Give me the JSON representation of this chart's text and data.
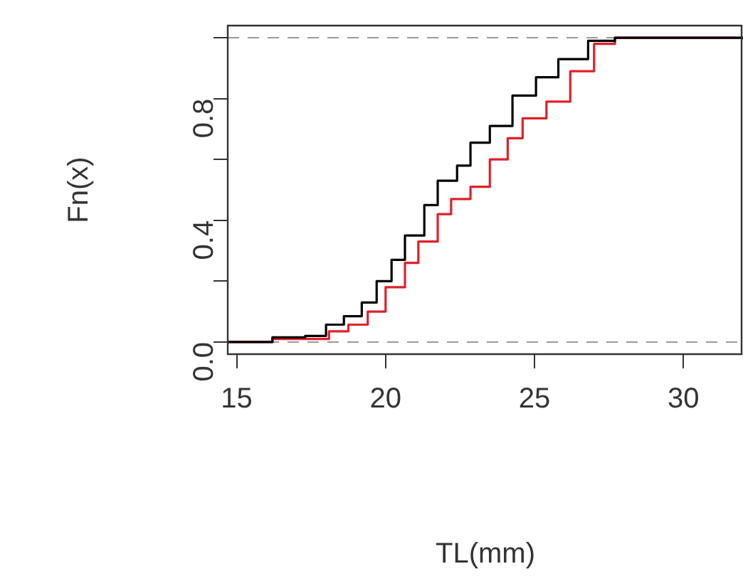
{
  "chart_data": {
    "type": "step",
    "xlabel": "TL(mm)",
    "ylabel": "Fn(x)",
    "xlim": [
      14.7,
      32
    ],
    "xticks": [
      15,
      20,
      25,
      30
    ],
    "ylim": [
      -0.04,
      1.04
    ],
    "yticks": [
      {
        "value": 0,
        "label": "0.0"
      },
      {
        "value": 0.2,
        "label": null
      },
      {
        "value": 0.4,
        "label": "0.4"
      },
      {
        "value": 0.6,
        "label": null
      },
      {
        "value": 0.8,
        "label": "0.8"
      },
      {
        "value": 1,
        "label": null
      }
    ],
    "series": [
      {
        "color": "#000000",
        "x": [
          14.7,
          16.2,
          17.3,
          18.0,
          18.6,
          19.2,
          19.7,
          20.2,
          20.65,
          21.3,
          21.75,
          22.4,
          22.85,
          23.5,
          24.26,
          25.05,
          25.8,
          26.8,
          27.7,
          28.0,
          32
        ],
        "values": [
          0,
          0,
          0.015,
          0.02,
          0.057,
          0.085,
          0.13,
          0.2,
          0.27,
          0.35,
          0.45,
          0.53,
          0.58,
          0.655,
          0.71,
          0.81,
          0.87,
          0.93,
          0.99,
          1,
          1
        ]
      },
      {
        "color": "#e0202a",
        "x": [
          14.7,
          16.2,
          18.1,
          18.75,
          19.4,
          20.0,
          20.65,
          21.1,
          21.75,
          22.2,
          22.85,
          23.5,
          24.1,
          24.6,
          25.4,
          26.2,
          27.0,
          27.7,
          28.2,
          32
        ],
        "values": [
          0,
          0,
          0.01,
          0.035,
          0.057,
          0.1,
          0.18,
          0.26,
          0.33,
          0.42,
          0.47,
          0.51,
          0.6,
          0.67,
          0.735,
          0.79,
          0.89,
          0.98,
          1,
          1
        ]
      }
    ],
    "ref_lines": [
      {
        "axis": "y",
        "value": 0,
        "color": "#9a9a9a",
        "line_style": "dashed"
      },
      {
        "axis": "y",
        "value": 1,
        "color": "#9a9a9a",
        "line_style": "dashed"
      }
    ],
    "legend": false
  }
}
